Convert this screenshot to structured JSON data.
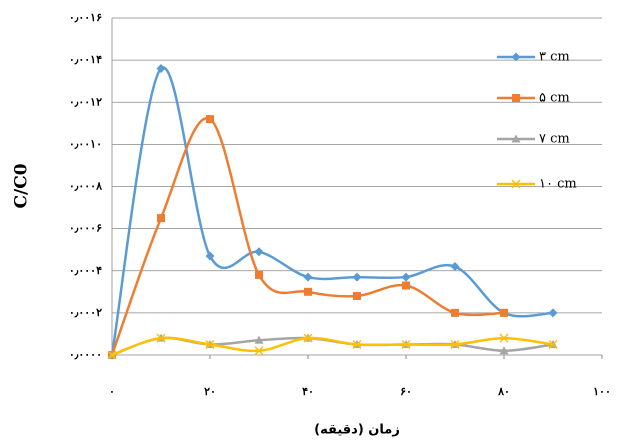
{
  "chart_data": {
    "type": "line",
    "y_label": "C/C0",
    "x_label": "زمان (دقیقه)",
    "x": [
      0,
      10,
      20,
      30,
      40,
      50,
      60,
      70,
      80,
      90
    ],
    "series": [
      {
        "name": "۳ cm",
        "color": "#5b9bd5",
        "marker": "diamond",
        "values": [
          0,
          0.00136,
          0.00047,
          0.00049,
          0.00037,
          0.00037,
          0.00037,
          0.00042,
          0.0002,
          0.0002
        ]
      },
      {
        "name": "۵ cm",
        "color": "#ed7d31",
        "marker": "square",
        "values": [
          0,
          0.00065,
          0.00112,
          0.00038,
          0.0003,
          0.00028,
          0.00033,
          0.0002,
          0.0002,
          null
        ]
      },
      {
        "name": "۷ cm",
        "color": "#a5a5a5",
        "marker": "triangle",
        "values": [
          0,
          8e-05,
          5e-05,
          7e-05,
          8e-05,
          5e-05,
          5e-05,
          5e-05,
          2e-05,
          5e-05
        ]
      },
      {
        "name": "۱۰ cm",
        "color": "#ffc000",
        "marker": "x",
        "values": [
          0,
          8e-05,
          5e-05,
          2e-05,
          8e-05,
          5e-05,
          5e-05,
          5e-05,
          8e-05,
          5e-05
        ]
      }
    ],
    "xlim": [
      0,
      100
    ],
    "xticks": [
      {
        "value": 0,
        "label": "۰"
      },
      {
        "value": 20,
        "label": "۲۰"
      },
      {
        "value": 40,
        "label": "۴۰"
      },
      {
        "value": 60,
        "label": "۶۰"
      },
      {
        "value": 80,
        "label": "۸۰"
      },
      {
        "value": 100,
        "label": "۱۰۰"
      }
    ],
    "ylim": [
      0,
      0.0016
    ],
    "yticks": [
      {
        "value": 0,
        "label": "۰٫۰۰۰۰"
      },
      {
        "value": 0.0002,
        "label": "۰٫۰۰۰۲"
      },
      {
        "value": 0.0004,
        "label": "۰٫۰۰۰۴"
      },
      {
        "value": 0.0006,
        "label": "۰٫۰۰۰۶"
      },
      {
        "value": 0.0008,
        "label": "۰٫۰۰۰۸"
      },
      {
        "value": 0.001,
        "label": "۰٫۰۰۱۰"
      },
      {
        "value": 0.0012,
        "label": "۰٫۰۰۱۲"
      },
      {
        "value": 0.0014,
        "label": "۰٫۰۰۱۴"
      },
      {
        "value": 0.0016,
        "label": "۰٫۰۰۱۶"
      }
    ],
    "grid": true,
    "legend": "right"
  }
}
